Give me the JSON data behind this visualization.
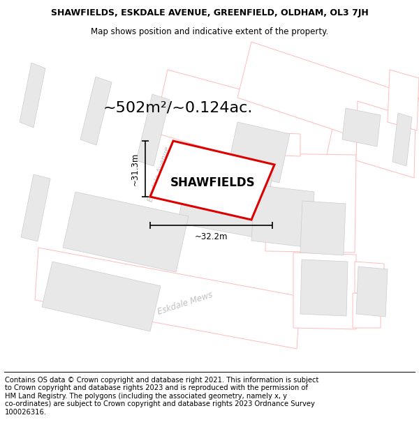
{
  "title_line1": "SHAWFIELDS, ESKDALE AVENUE, GREENFIELD, OLDHAM, OL3 7JH",
  "title_line2": "Map shows position and indicative extent of the property.",
  "area_text": "~502m²/~0.124ac.",
  "property_name": "SHAWFIELDS",
  "dim_width": "~32.2m",
  "dim_height": "~31.3m",
  "footer_text": "Contains OS data © Crown copyright and database right 2021. This information is subject\nto Crown copyright and database rights 2023 and is reproduced with the permission of\nHM Land Registry. The polygons (including the associated geometry, namely x, y\nco-ordinates) are subject to Crown copyright and database rights 2023 Ordnance Survey\n100026316.",
  "map_bg": "#ffffff",
  "building_fill": "#e8e8e8",
  "building_edge": "#cccccc",
  "red_edge": "#dd0000",
  "red_fill": "#ffffff",
  "road_fill": "#ffffff",
  "road_edge_color": "#ffbbbb",
  "road_label_color": "#c0c0c0",
  "title_fontsize": 9.0,
  "subtitle_fontsize": 8.5,
  "footer_fontsize": 7.2,
  "area_fontsize": 16,
  "name_fontsize": 12,
  "dim_fontsize": 8.5
}
